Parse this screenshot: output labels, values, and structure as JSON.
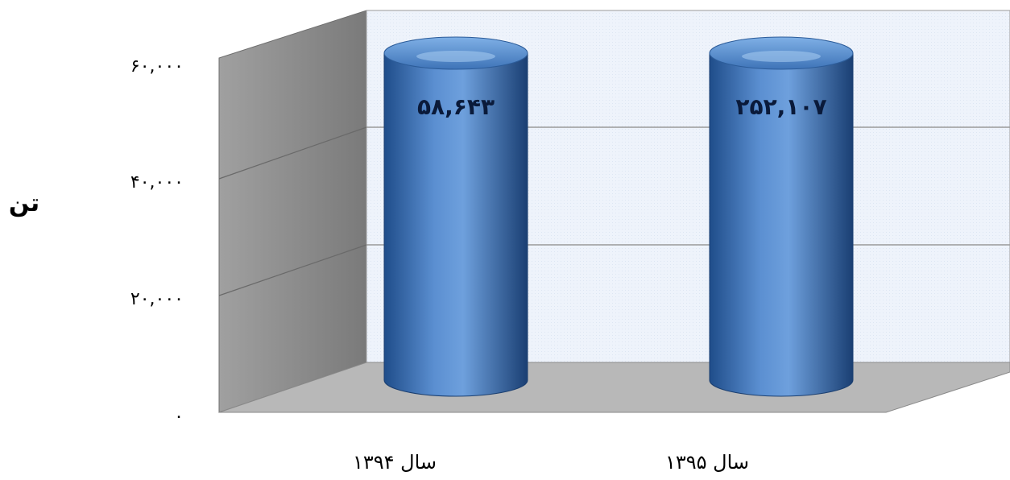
{
  "chart_data": {
    "type": "bar",
    "style": "3d-cylinder",
    "categories": [
      "سال ۱۳۹۴",
      "سال ۱۳۹۵"
    ],
    "values": [
      58643,
      252107
    ],
    "data_labels": [
      "۵۸,۶۴۳",
      "۲۵۲,۱۰۷"
    ],
    "ylabel": "تن",
    "y_ticks": [
      0,
      20000,
      40000,
      60000
    ],
    "y_tick_labels": [
      "۰",
      "۲۰,۰۰۰",
      "۴۰,۰۰۰",
      "۶۰,۰۰۰"
    ],
    "ylim": [
      0,
      60000
    ],
    "grid": true,
    "legend": "none",
    "colors": {
      "bar": "#4f81bd",
      "bar_dark": "#1f4d8a",
      "back_wall": "#eef3fb",
      "side_wall": "#8c8c8c",
      "floor": "#b8b8b8",
      "gridline": "#9a9a9a"
    }
  }
}
